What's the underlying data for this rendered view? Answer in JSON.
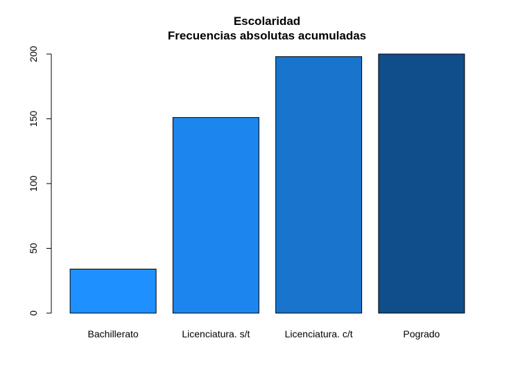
{
  "chart_data": {
    "type": "bar",
    "title": "Escolaridad",
    "subtitle": "Frecuencias absolutas acumuladas",
    "categories": [
      "Bachillerato",
      "Licenciatura. s/t",
      "Licenciatura. c/t",
      "Pogrado"
    ],
    "values": [
      34,
      151,
      198,
      200
    ],
    "colors": [
      "#1e90ff",
      "#1c86ee",
      "#1874cd",
      "#104e8b"
    ],
    "ylim": [
      0,
      200
    ],
    "yticks": [
      0,
      50,
      100,
      150,
      200
    ],
    "xlabel": "",
    "ylabel": "",
    "grid": false
  }
}
